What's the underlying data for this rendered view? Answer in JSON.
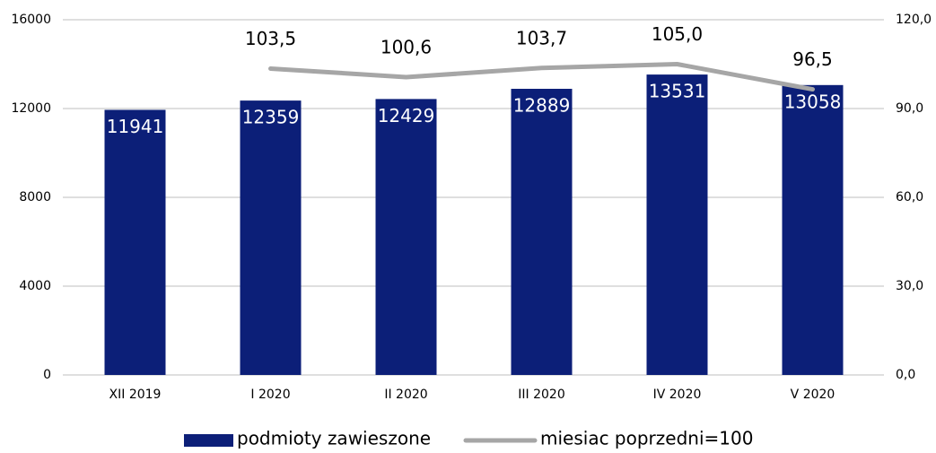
{
  "chart_data": {
    "type": "bar",
    "categories": [
      "XII 2019",
      "I 2020",
      "II 2020",
      "III 2020",
      "IV 2020",
      "V 2020"
    ],
    "series": [
      {
        "name": "podmioty zawieszone",
        "type": "bar",
        "color": "#0c1f78",
        "values": [
          11941,
          12359,
          12429,
          12889,
          13531,
          13058
        ]
      },
      {
        "name": "miesiac poprzedni=100",
        "type": "line",
        "axis": "y2",
        "color": "#a6a6a6",
        "values": [
          null,
          103.5,
          100.6,
          103.7,
          105.0,
          96.5
        ],
        "value_labels": [
          null,
          "103,5",
          "100,6",
          "103,7",
          "105,0",
          "96,5"
        ]
      }
    ],
    "ylim": [
      0,
      16000
    ],
    "yticks": [
      0,
      4000,
      8000,
      12000,
      16000
    ],
    "y2lim": [
      0,
      120
    ],
    "y2ticks": [
      {
        "value": 0,
        "label": "0,0"
      },
      {
        "value": 30,
        "label": "30,0"
      },
      {
        "value": 60,
        "label": "60,0"
      },
      {
        "value": 90,
        "label": "90,0"
      },
      {
        "value": 120,
        "label": "120,0"
      }
    ],
    "grid": true
  }
}
